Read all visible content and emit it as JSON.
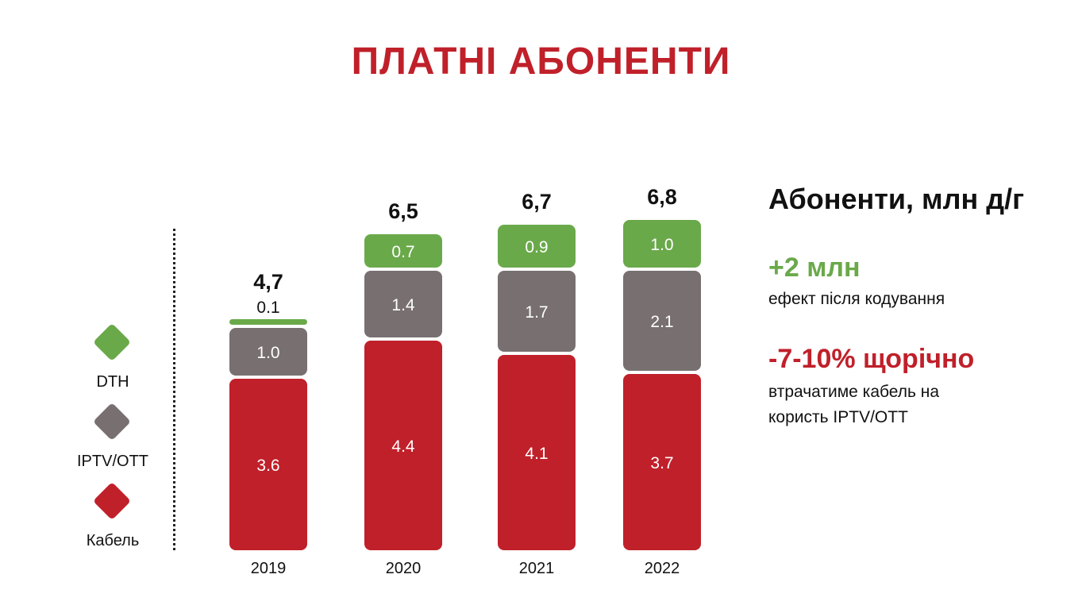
{
  "title": "ПЛАТНІ АБОНЕНТИ",
  "legend": [
    {
      "label": "DTH",
      "color": "#6aa94a",
      "icon": "diamond"
    },
    {
      "label": "IPTV/OTT",
      "color": "#787070",
      "icon": "diamond"
    },
    {
      "label": "Кабель",
      "color": "#c0202a",
      "icon": "diamond"
    }
  ],
  "side": {
    "heading": "Абоненти, млн д/г",
    "stat1_value": "+2 млн",
    "stat1_text": "ефект після кодування",
    "stat2_value": "-7-10% щорічно",
    "stat2_text_line1": "втрачатиме кабель на",
    "stat2_text_line2": "користь IPTV/OTT"
  },
  "chart_data": {
    "type": "bar",
    "stacked": true,
    "title": "ПЛАТНІ АБОНЕНТИ",
    "categories": [
      "2019",
      "2020",
      "2021",
      "2022"
    ],
    "series": [
      {
        "name": "Кабель",
        "values": [
          3.6,
          4.4,
          4.1,
          3.7
        ],
        "labels": [
          "3.6",
          "4.4",
          "4.1",
          "3.7"
        ],
        "color": "#c0202a"
      },
      {
        "name": "IPTV/OTT",
        "values": [
          1.0,
          1.4,
          1.7,
          2.1
        ],
        "labels": [
          "1.0",
          "1.4",
          "1.7",
          "2.1"
        ],
        "color": "#787070"
      },
      {
        "name": "DTH",
        "values": [
          0.1,
          0.7,
          0.9,
          1.0
        ],
        "labels": [
          "0.1",
          "0.7",
          "0.9",
          "1.0"
        ],
        "color": "#6aa94a"
      }
    ],
    "totals": [
      "4,7",
      "6,5",
      "6,7",
      "6,8"
    ],
    "ylim": [
      0,
      7
    ],
    "grid": false,
    "legend_position": "left"
  }
}
